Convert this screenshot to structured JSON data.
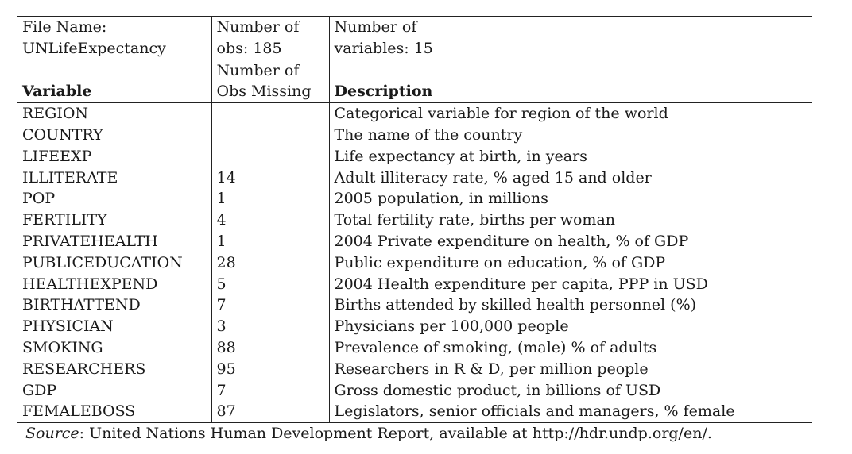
{
  "meta": {
    "file_name_label": "File Name:",
    "file_name_value": "UNLifeExpectancy",
    "obs_label": "Number of",
    "obs_value": "obs: 185",
    "vars_label": "Number of",
    "vars_value": "variables: 15"
  },
  "header": {
    "variable": "Variable",
    "missing_line1": "Number of",
    "missing_line2": "Obs Missing",
    "description": "Description"
  },
  "rows": [
    {
      "variable": "REGION",
      "missing": "",
      "description": "Categorical variable for region of the world"
    },
    {
      "variable": "COUNTRY",
      "missing": "",
      "description": "The name of the country"
    },
    {
      "variable": "LIFEEXP",
      "missing": "",
      "description": "Life expectancy at birth, in years"
    },
    {
      "variable": "ILLITERATE",
      "missing": "14",
      "description": "Adult illiteracy rate, % aged 15 and older"
    },
    {
      "variable": "POP",
      "missing": "1",
      "description": "2005 population, in millions"
    },
    {
      "variable": "FERTILITY",
      "missing": "4",
      "description": "Total fertility rate, births per woman"
    },
    {
      "variable": "PRIVATEHEALTH",
      "missing": "1",
      "description": "2004 Private expenditure on health, % of GDP"
    },
    {
      "variable": "PUBLICEDUCATION",
      "missing": "28",
      "description": "Public expenditure on education, % of GDP"
    },
    {
      "variable": "HEALTHEXPEND",
      "missing": "5",
      "description": "2004 Health expenditure per capita, PPP in USD"
    },
    {
      "variable": "BIRTHATTEND",
      "missing": "7",
      "description": "Births attended by skilled health personnel (%)"
    },
    {
      "variable": "PHYSICIAN",
      "missing": "3",
      "description": "Physicians per 100,000 people"
    },
    {
      "variable": "SMOKING",
      "missing": "88",
      "description": "Prevalence of smoking, (male) % of adults"
    },
    {
      "variable": "RESEARCHERS",
      "missing": "95",
      "description": "Researchers in R & D, per million people"
    },
    {
      "variable": "GDP",
      "missing": "7",
      "description": "Gross domestic product, in billions of USD"
    },
    {
      "variable": "FEMALEBOSS",
      "missing": "87",
      "description": "Legislators, senior officials and managers, % female"
    }
  ],
  "source": {
    "label": "Source",
    "text": ": United Nations Human Development Report, available at http://hdr.undp.org/en/."
  }
}
